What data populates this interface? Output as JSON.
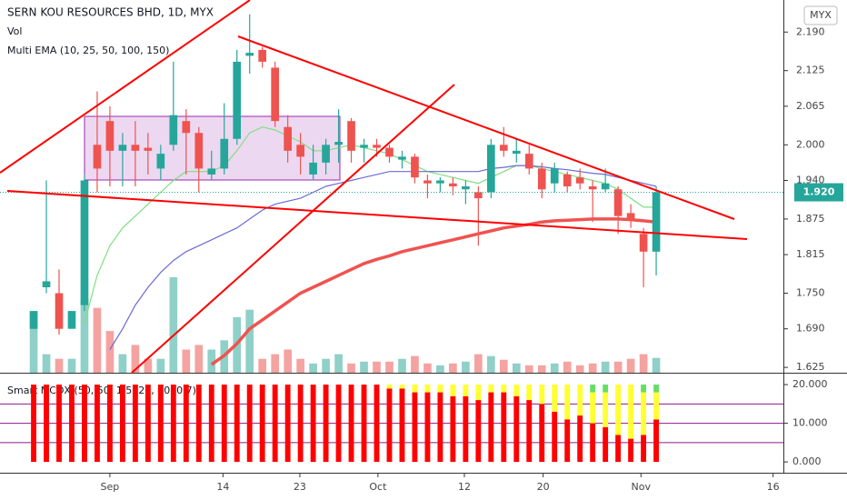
{
  "chart_data": [
    {
      "type": "candlestick",
      "title": "SERN KOU RESOURCES BHD, 1D, MYX",
      "currency": "MYX",
      "volume_label": "Vol",
      "ema_label": "Multi EMA (10, 25, 50, 100, 150)",
      "up_color": "#26a69a",
      "down_color": "#ef5350",
      "volume_up_color": "#8fd0c8",
      "volume_down_color": "#f4a3a1",
      "open": [
        1.69,
        1.76,
        1.75,
        1.69,
        1.73,
        2.0,
        2.04,
        1.99,
        2.0,
        1.995,
        1.96,
        2.0,
        2.04,
        2.02,
        1.95,
        1.96,
        2.01,
        2.15,
        2.16,
        2.13,
        2.03,
        2.0,
        1.95,
        1.97,
        2.0,
        2.04,
        1.995,
        2.0,
        1.995,
        1.975,
        1.98,
        1.94,
        1.935,
        1.935,
        1.925,
        1.92,
        1.92,
        2.0,
        1.985,
        1.985,
        1.96,
        1.935,
        1.95,
        1.945,
        1.93,
        1.925,
        1.925,
        1.885,
        1.85,
        1.82
      ],
      "high": [
        1.72,
        1.94,
        1.79,
        1.72,
        1.95,
        2.09,
        2.065,
        2.02,
        2.04,
        2.02,
        2.0,
        2.14,
        2.06,
        2.03,
        1.99,
        2.07,
        2.16,
        2.22,
        2.165,
        2.14,
        2.05,
        2.02,
        2.0,
        2.01,
        2.06,
        2.045,
        2.01,
        2.01,
        2.0,
        1.99,
        1.985,
        1.95,
        1.945,
        1.945,
        1.94,
        1.93,
        2.01,
        2.03,
        2.01,
        2.0,
        1.97,
        1.97,
        1.955,
        1.96,
        1.94,
        1.96,
        1.93,
        1.9,
        1.86,
        1.93
      ],
      "low": [
        1.69,
        1.75,
        1.68,
        1.69,
        1.72,
        1.92,
        1.93,
        1.93,
        1.93,
        1.95,
        1.94,
        1.99,
        1.95,
        1.92,
        1.94,
        1.95,
        2.0,
        2.12,
        2.13,
        2.03,
        1.97,
        1.95,
        1.94,
        1.95,
        1.97,
        1.97,
        1.97,
        1.98,
        1.97,
        1.96,
        1.935,
        1.91,
        1.92,
        1.915,
        1.9,
        1.83,
        1.91,
        1.98,
        1.97,
        1.95,
        1.91,
        1.92,
        1.92,
        1.925,
        1.87,
        1.92,
        1.85,
        1.86,
        1.76,
        1.78
      ],
      "close": [
        1.72,
        1.77,
        1.69,
        1.72,
        1.94,
        1.96,
        1.99,
        2.0,
        1.99,
        1.99,
        1.985,
        2.05,
        2.02,
        1.96,
        1.96,
        2.01,
        2.14,
        2.155,
        2.14,
        2.04,
        1.99,
        1.98,
        1.97,
        2.0,
        2.005,
        1.99,
        2.0,
        1.995,
        1.98,
        1.98,
        1.945,
        1.935,
        1.94,
        1.93,
        1.93,
        1.91,
        2.0,
        1.99,
        1.99,
        1.96,
        1.925,
        1.96,
        1.93,
        1.935,
        1.925,
        1.935,
        1.88,
        1.875,
        1.82,
        1.92
      ],
      "volume": [
        65,
        20,
        15,
        15,
        80,
        70,
        45,
        20,
        30,
        15,
        15,
        103,
        25,
        30,
        25,
        35,
        60,
        68,
        15,
        20,
        25,
        15,
        10,
        15,
        20,
        10,
        12,
        12,
        12,
        15,
        18,
        10,
        8,
        10,
        12,
        20,
        18,
        14,
        10,
        8,
        8,
        10,
        12,
        8,
        10,
        12,
        12,
        15,
        20,
        16
      ],
      "ema": [
        {
          "color": "#7ee07e",
          "values": [
            null,
            null,
            null,
            null,
            1.7,
            1.78,
            1.83,
            1.86,
            1.88,
            1.9,
            1.92,
            1.94,
            1.955,
            1.955,
            1.955,
            1.965,
            1.99,
            2.02,
            2.03,
            2.025,
            2.015,
            2.005,
            1.99,
            1.99,
            1.995,
            2.0,
            1.995,
            1.99,
            1.985,
            1.975,
            1.965,
            1.955,
            1.95,
            1.945,
            1.94,
            1.935,
            1.945,
            1.955,
            1.965,
            1.965,
            1.96,
            1.955,
            1.95,
            1.945,
            1.94,
            1.935,
            1.925,
            1.91,
            1.895,
            1.895
          ]
        },
        {
          "color": "#6b6bd6",
          "values": [
            null,
            null,
            null,
            null,
            null,
            null,
            1.655,
            1.69,
            1.73,
            1.76,
            1.785,
            1.805,
            1.82,
            1.83,
            1.84,
            1.85,
            1.86,
            1.875,
            1.89,
            1.9,
            1.905,
            1.91,
            1.92,
            1.93,
            1.935,
            1.94,
            1.945,
            1.95,
            1.955,
            1.955,
            1.955,
            1.955,
            1.955,
            1.955,
            1.955,
            1.955,
            1.96,
            1.962,
            1.965,
            1.965,
            1.963,
            1.96,
            1.958,
            1.955,
            1.952,
            1.95,
            1.945,
            1.94,
            1.935,
            1.93
          ]
        },
        {
          "color": "#ef5350",
          "values": [
            null,
            null,
            null,
            null,
            null,
            null,
            null,
            null,
            null,
            null,
            null,
            null,
            null,
            null,
            1.63,
            1.645,
            1.665,
            1.69,
            1.705,
            1.72,
            1.735,
            1.75,
            1.76,
            1.77,
            1.78,
            1.79,
            1.8,
            1.807,
            1.813,
            1.82,
            1.825,
            1.83,
            1.835,
            1.84,
            1.845,
            1.85,
            1.855,
            1.86,
            1.863,
            1.866,
            1.87,
            1.872,
            1.873,
            1.874,
            1.875,
            1.875,
            1.875,
            1.874,
            1.872,
            1.87
          ]
        }
      ],
      "ylim": [
        1.616,
        2.244
      ],
      "yticks": [
        {
          "value": 2.19,
          "label": "2.190"
        },
        2.125,
        2.065,
        {
          "value": 2.0,
          "label": "2.000"
        },
        {
          "value": 1.94,
          "label": "1.940"
        },
        1.875,
        1.815,
        {
          "value": 1.75,
          "label": "1.750"
        },
        {
          "value": 1.69,
          "label": "1.690"
        },
        1.625
      ],
      "xlim": [
        -2.65,
        59.01
      ],
      "xticks": [
        {
          "value": 6.0,
          "label": "Sep"
        },
        {
          "value": 14.9,
          "label": "14"
        },
        {
          "value": 20.95,
          "label": "23"
        },
        {
          "value": 27.1,
          "label": "Oct"
        },
        {
          "value": 33.9,
          "label": "12"
        },
        {
          "value": 40.1,
          "label": "20"
        },
        {
          "value": 47.8,
          "label": "Nov"
        },
        {
          "value": 58.2,
          "label": "16"
        }
      ],
      "last_price": {
        "value": 1.92,
        "label": "1.920"
      }
    },
    {
      "type": "stacked_bar",
      "title": "Smart MCDX (50, 50, 1.5, 20, 40, 0.7)",
      "series": [
        {
          "color": "#ff0000",
          "values": [
            20,
            20,
            20,
            20,
            20,
            20,
            20,
            20,
            20,
            20,
            20,
            20,
            20,
            20,
            20,
            20,
            20,
            20,
            20,
            20,
            20,
            20,
            20,
            20,
            20,
            20,
            20,
            20,
            19,
            19,
            18,
            18,
            18,
            17,
            17,
            16,
            18,
            18,
            17,
            16,
            15,
            13,
            11,
            12,
            10,
            9,
            7,
            6,
            7,
            11
          ]
        },
        {
          "color": "#ffff33",
          "values": [
            0,
            0,
            0,
            0,
            0,
            0,
            0,
            0,
            0,
            0,
            0,
            0,
            0,
            0,
            0,
            0,
            0,
            0,
            0,
            0,
            0,
            0,
            0,
            0,
            0,
            0,
            0,
            0,
            1,
            1,
            2,
            2,
            2,
            3,
            3,
            4,
            2,
            2,
            3,
            4,
            5,
            7,
            9,
            8,
            8,
            9,
            13,
            14,
            11,
            7
          ]
        },
        {
          "color": "#66dd66",
          "values": [
            0,
            0,
            0,
            0,
            0,
            0,
            0,
            0,
            0,
            0,
            0,
            0,
            0,
            0,
            0,
            0,
            0,
            0,
            0,
            0,
            0,
            0,
            0,
            0,
            0,
            0,
            0,
            0,
            0,
            0,
            0,
            0,
            0,
            0,
            0,
            0,
            0,
            0,
            0,
            0,
            0,
            0,
            0,
            0,
            2,
            2,
            0,
            0,
            2,
            2
          ]
        }
      ],
      "ylim": [
        -2.8,
        22.6
      ],
      "yticks": [
        {
          "value": 20,
          "label": "20.000"
        },
        {
          "value": 10,
          "label": "10.000"
        },
        {
          "value": 0,
          "label": "0.000"
        }
      ],
      "hlines": [
        5,
        10,
        15
      ],
      "hline_color": "#8b1a8b",
      "xlim": [
        -2.65,
        59.01
      ]
    }
  ]
}
